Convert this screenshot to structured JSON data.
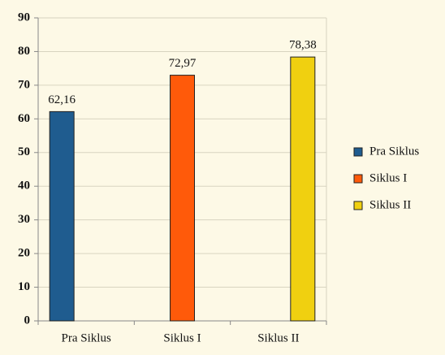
{
  "chart_data": {
    "type": "bar",
    "categories": [
      "Pra Siklus",
      "Siklus I",
      "Siklus II"
    ],
    "series": [
      {
        "name": "Pra Siklus",
        "color": "#1f5c8f",
        "values": [
          62.16,
          null,
          null
        ],
        "value_labels": [
          "62,16",
          null,
          null
        ]
      },
      {
        "name": "Siklus I",
        "color": "#ff5a0a",
        "values": [
          null,
          72.97,
          null
        ],
        "value_labels": [
          null,
          "72,97",
          null
        ]
      },
      {
        "name": "Siklus II",
        "color": "#f0d010",
        "values": [
          null,
          null,
          78.38
        ],
        "value_labels": [
          null,
          null,
          "78,38"
        ]
      }
    ],
    "ylim": [
      0,
      90
    ],
    "yticks": [
      0,
      10,
      20,
      30,
      40,
      50,
      60,
      70,
      80,
      90
    ],
    "grid": true,
    "legend": "right"
  }
}
